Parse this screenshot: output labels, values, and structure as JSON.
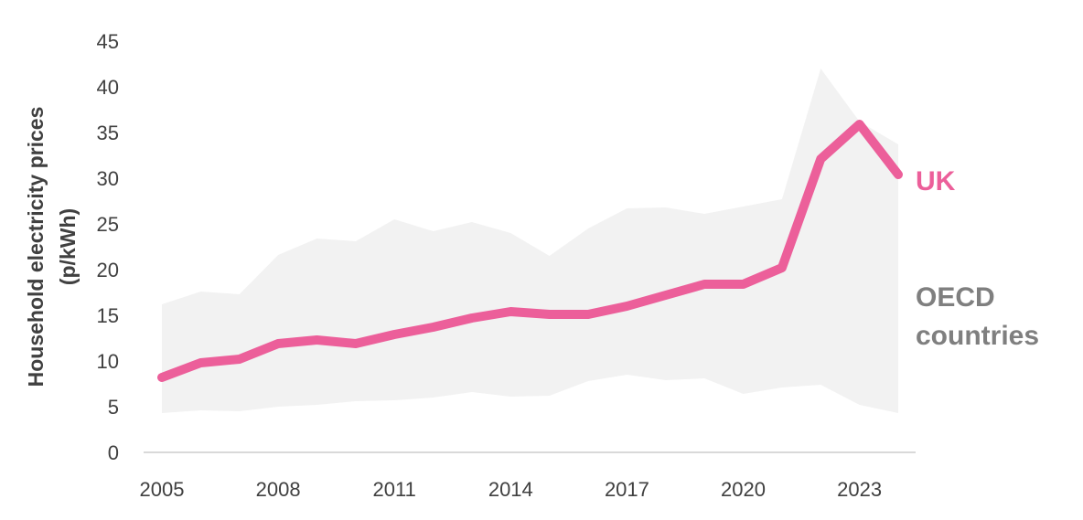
{
  "chart_data": {
    "type": "line",
    "ylabel_line1": "Household electricity prices",
    "ylabel_line2": "(p/kWh)",
    "ylim": [
      0,
      45
    ],
    "yticks": [
      0,
      5,
      10,
      15,
      20,
      25,
      30,
      35,
      40,
      45
    ],
    "xlim": [
      2005,
      2024
    ],
    "xticks": [
      2005,
      2008,
      2011,
      2014,
      2017,
      2020,
      2023
    ],
    "grid": false,
    "series": [
      {
        "name": "UK",
        "color": "#ec5f9a",
        "x": [
          2005,
          2006,
          2007,
          2008,
          2009,
          2010,
          2011,
          2012,
          2013,
          2014,
          2015,
          2016,
          2017,
          2018,
          2019,
          2020,
          2021,
          2022,
          2023,
          2024
        ],
        "values": [
          8.2,
          9.8,
          10.2,
          11.9,
          12.3,
          11.9,
          12.9,
          13.7,
          14.7,
          15.4,
          15.1,
          15.1,
          16.0,
          17.2,
          18.4,
          18.4,
          20.2,
          32.1,
          35.9,
          30.4
        ]
      },
      {
        "name": "OECD\ncountries",
        "type": "band",
        "color": "#f2f2f2",
        "x": [
          2005,
          2006,
          2007,
          2008,
          2009,
          2010,
          2011,
          2012,
          2013,
          2014,
          2015,
          2016,
          2017,
          2018,
          2019,
          2020,
          2021,
          2022,
          2023,
          2024
        ],
        "upper": [
          16.2,
          17.6,
          17.3,
          21.6,
          23.4,
          23.1,
          25.5,
          24.2,
          25.2,
          24.0,
          21.5,
          24.5,
          26.7,
          26.8,
          26.1,
          26.9,
          27.7,
          42.0,
          36.2,
          33.7
        ],
        "lower": [
          4.3,
          4.6,
          4.5,
          5.0,
          5.2,
          5.6,
          5.7,
          6.0,
          6.6,
          6.1,
          6.2,
          7.8,
          8.5,
          7.9,
          8.1,
          6.4,
          7.1,
          7.4,
          5.2,
          4.3
        ]
      }
    ],
    "labels": {
      "uk": "UK",
      "oecd_line1": "OECD",
      "oecd_line2": "countries"
    }
  }
}
